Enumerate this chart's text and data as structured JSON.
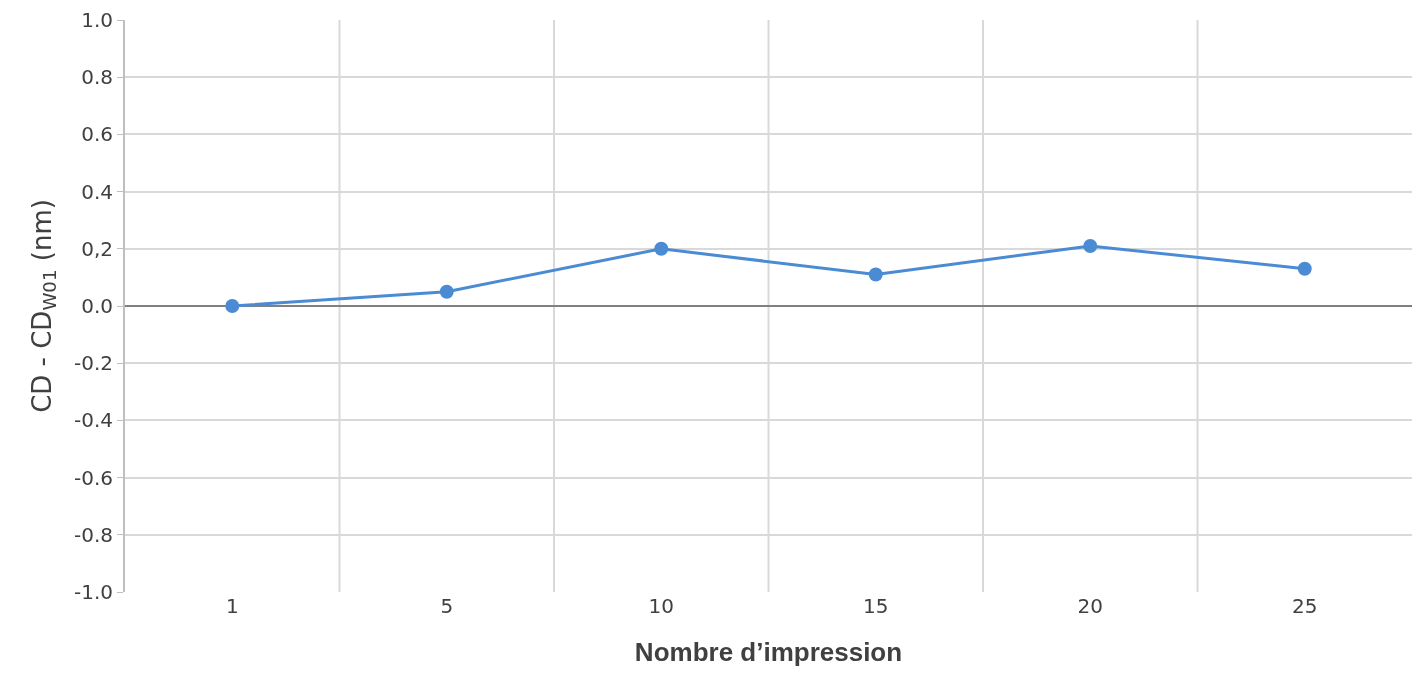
{
  "chart_data": {
    "type": "line",
    "xlabel": "Nombre d’impression",
    "ylabel": "CD - CD$_{W01}$ (nm)",
    "categories": [
      "1",
      "5",
      "10",
      "15",
      "20",
      "25"
    ],
    "series": [
      {
        "color": "#4a8bd4",
        "values": [
          0.0,
          0.05,
          0.2,
          0.11,
          0.21,
          0.13
        ]
      }
    ],
    "ylim": [
      -1.0,
      1.0
    ],
    "yticks": [
      {
        "value": -1.0,
        "label": "-1.0"
      },
      {
        "value": -0.8,
        "label": "-0.8"
      },
      {
        "value": -0.6,
        "label": "-0.6"
      },
      {
        "value": -0.4,
        "label": "-0.4"
      },
      {
        "value": -0.2,
        "label": "-0.2"
      },
      {
        "value": 0.0,
        "label": "0.0"
      },
      {
        "value": 0.2,
        "label": "0,2"
      },
      {
        "value": 0.4,
        "label": "0.4"
      },
      {
        "value": 0.6,
        "label": "0.6"
      },
      {
        "value": 0.8,
        "label": "0.8"
      },
      {
        "value": 1.0,
        "label": "1.0"
      }
    ],
    "grid": true,
    "marker": "circle",
    "line_style": "solid"
  }
}
